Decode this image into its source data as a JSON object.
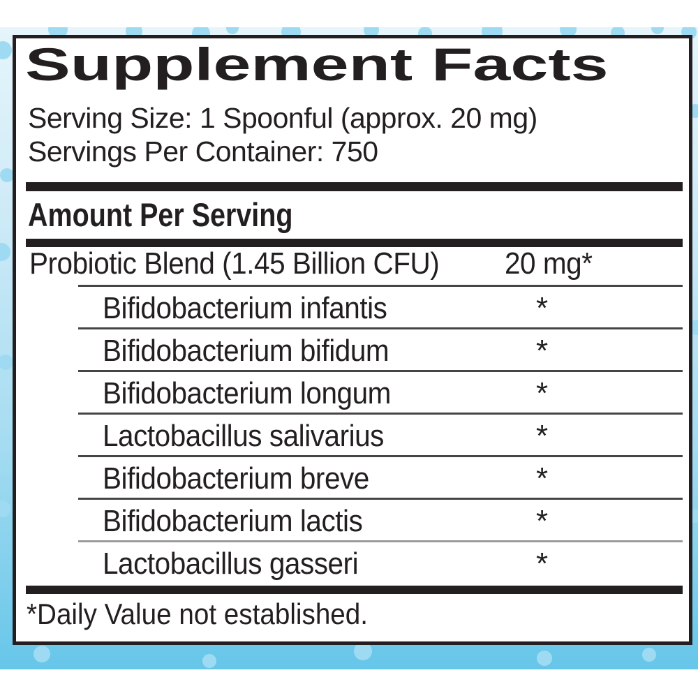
{
  "label": {
    "title": "Supplement Facts",
    "serving_size": "Serving Size: 1 Spoonful (approx. 20 mg)",
    "servings_per_container": "Servings Per Container: 750",
    "amount_per_serving_header": "Amount Per Serving",
    "blend": {
      "name": "Probiotic Blend (1.45 Billion CFU)",
      "amount": "20 mg*"
    },
    "ingredients": [
      {
        "name": "Bifidobacterium infantis",
        "amount": "*"
      },
      {
        "name": "Bifidobacterium bifidum",
        "amount": "*"
      },
      {
        "name": "Bifidobacterium longum",
        "amount": "*"
      },
      {
        "name": "Lactobacillus salivarius",
        "amount": "*"
      },
      {
        "name": "Bifidobacterium breve",
        "amount": "*"
      },
      {
        "name": "Bifidobacterium lactis",
        "amount": "*"
      },
      {
        "name": "Lactobacillus gasseri",
        "amount": "*"
      }
    ],
    "footnote": "*Daily Value not established.",
    "colors": {
      "ink": "#231f20",
      "backdrop_top": "#e6f5fb",
      "backdrop_bottom": "#66c6e9",
      "dot": "#9edbf3"
    }
  }
}
